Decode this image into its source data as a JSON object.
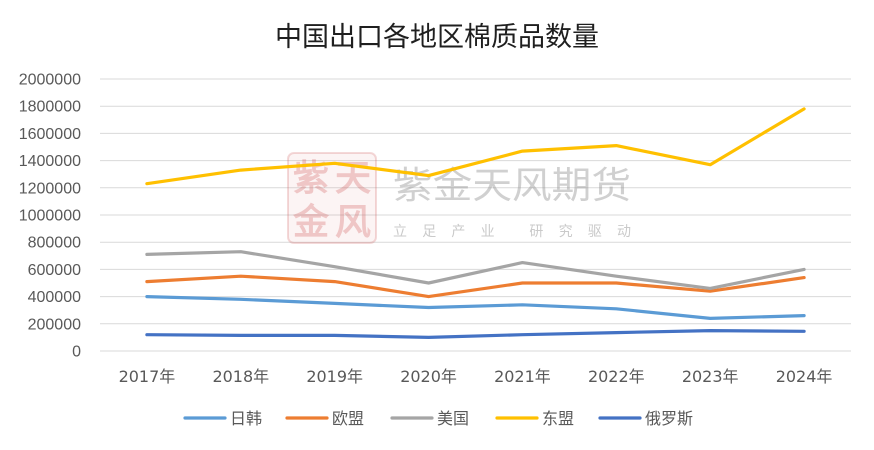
{
  "chart_data": {
    "type": "line",
    "title": "中国出口各地区棉质品数量",
    "categories": [
      "2017年",
      "2018年",
      "2019年",
      "2020年",
      "2021年",
      "2022年",
      "2023年",
      "2024年"
    ],
    "ylim": [
      0,
      2000000
    ],
    "yticks": [
      0,
      200000,
      400000,
      600000,
      800000,
      1000000,
      1200000,
      1400000,
      1600000,
      1800000,
      2000000
    ],
    "grid": true,
    "legend": "bottom",
    "series": [
      {
        "name": "日韩",
        "color": "#5B9BD5",
        "values": [
          400000,
          380000,
          350000,
          320000,
          340000,
          310000,
          240000,
          260000
        ]
      },
      {
        "name": "欧盟",
        "color": "#ED7D31",
        "values": [
          510000,
          550000,
          510000,
          400000,
          500000,
          500000,
          440000,
          540000
        ]
      },
      {
        "name": "美国",
        "color": "#A5A5A5",
        "values": [
          710000,
          730000,
          620000,
          500000,
          650000,
          550000,
          460000,
          600000
        ]
      },
      {
        "name": "东盟",
        "color": "#FFC000",
        "values": [
          1230000,
          1330000,
          1380000,
          1290000,
          1470000,
          1510000,
          1370000,
          1780000
        ]
      },
      {
        "name": "俄罗斯",
        "color": "#4472C4",
        "values": [
          120000,
          115000,
          115000,
          100000,
          120000,
          135000,
          150000,
          145000
        ]
      }
    ]
  },
  "watermark": {
    "logo_chars": [
      "紫",
      "天",
      "金",
      "风"
    ],
    "company": "紫金天风期货",
    "slogan": "立足产业 研究驱动"
  }
}
